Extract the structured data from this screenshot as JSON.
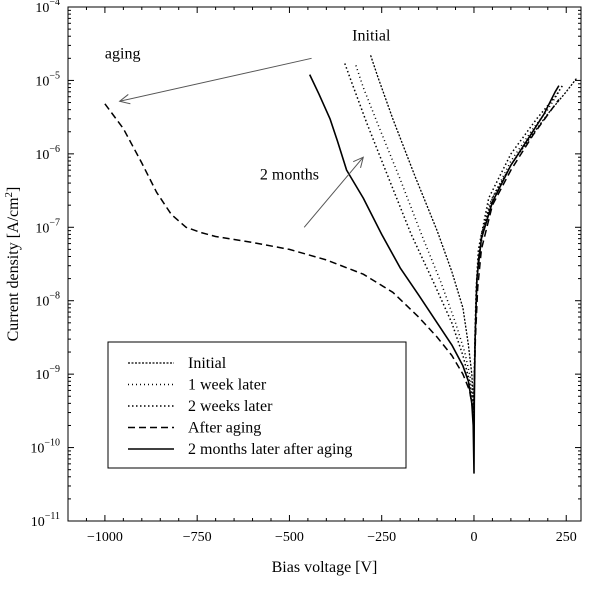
{
  "chart_data": {
    "type": "line",
    "title": "",
    "xlabel": "Bias voltage [V]",
    "ylabel_main": "Current density [A/cm",
    "ylabel_sup": "2",
    "ylabel_end": "]",
    "xlim": [
      -1100,
      290
    ],
    "ylim_log10": [
      -11,
      -4
    ],
    "y_scale": "log",
    "grid": false,
    "legend_position": "bottom-left",
    "x_ticks": [
      {
        "value": -1000,
        "label": "−1000"
      },
      {
        "value": -750,
        "label": "−750"
      },
      {
        "value": -500,
        "label": "−500"
      },
      {
        "value": -250,
        "label": "−250"
      },
      {
        "value": 0,
        "label": "0"
      },
      {
        "value": 250,
        "label": "250"
      }
    ],
    "y_ticks": [
      {
        "exp": -11,
        "base": "10",
        "sup": "−11"
      },
      {
        "exp": -10,
        "base": "10",
        "sup": "−10"
      },
      {
        "exp": -9,
        "base": "10",
        "sup": "−9"
      },
      {
        "exp": -8,
        "base": "10",
        "sup": "−8"
      },
      {
        "exp": -7,
        "base": "10",
        "sup": "−7"
      },
      {
        "exp": -6,
        "base": "10",
        "sup": "−6"
      },
      {
        "exp": -5,
        "base": "10",
        "sup": "−5"
      },
      {
        "exp": -4,
        "base": "10",
        "sup": "−4"
      }
    ],
    "series": [
      {
        "name": "Initial",
        "dash": "2,1.5",
        "width": 1.3,
        "points": [
          [
            -280,
            2.2e-05
          ],
          [
            -260,
            1.1e-05
          ],
          [
            -220,
            3e-06
          ],
          [
            -160,
            5e-07
          ],
          [
            -100,
            9e-08
          ],
          [
            -60,
            2.5e-08
          ],
          [
            -30,
            8e-09
          ],
          [
            -15,
            2.5e-09
          ],
          [
            -6,
            1e-09
          ],
          [
            -2,
            5e-10
          ],
          [
            0,
            3e-10
          ],
          [
            1,
            8e-10
          ],
          [
            3,
            3e-09
          ],
          [
            6,
            1e-08
          ],
          [
            10,
            3e-08
          ],
          [
            20,
            8e-08
          ],
          [
            50,
            2.5e-07
          ],
          [
            100,
            7e-07
          ],
          [
            150,
            1.6e-06
          ],
          [
            200,
            3.5e-06
          ],
          [
            250,
            7e-06
          ],
          [
            280,
            1.1e-05
          ]
        ]
      },
      {
        "name": "1 week later",
        "dash": "1,3",
        "width": 1.5,
        "points": [
          [
            -320,
            1.6e-05
          ],
          [
            -300,
            8e-06
          ],
          [
            -260,
            2.5e-06
          ],
          [
            -200,
            4.5e-07
          ],
          [
            -140,
            7.5e-08
          ],
          [
            -90,
            1.8e-08
          ],
          [
            -50,
            5e-09
          ],
          [
            -25,
            2e-09
          ],
          [
            -10,
            9e-10
          ],
          [
            -3,
            5e-10
          ],
          [
            0,
            2.5e-10
          ],
          [
            1,
            1e-09
          ],
          [
            3,
            3e-09
          ],
          [
            6,
            1.2e-08
          ],
          [
            12,
            4e-08
          ],
          [
            40,
            2e-07
          ],
          [
            100,
            8e-07
          ],
          [
            160,
            2.2e-06
          ],
          [
            200,
            4e-06
          ],
          [
            230,
            7e-06
          ]
        ]
      },
      {
        "name": "2 weeks later",
        "dash": "1.5,2.5",
        "width": 1.5,
        "points": [
          [
            -350,
            1.7e-05
          ],
          [
            -330,
            9e-06
          ],
          [
            -290,
            2.6e-06
          ],
          [
            -230,
            4.5e-07
          ],
          [
            -170,
            8e-08
          ],
          [
            -110,
            1.8e-08
          ],
          [
            -60,
            5e-09
          ],
          [
            -30,
            1.8e-09
          ],
          [
            -12,
            8e-10
          ],
          [
            -4,
            4.5e-10
          ],
          [
            0,
            2e-10
          ],
          [
            1,
            1e-09
          ],
          [
            3,
            4e-09
          ],
          [
            6,
            1.5e-08
          ],
          [
            12,
            5e-08
          ],
          [
            40,
            2.5e-07
          ],
          [
            100,
            1e-06
          ],
          [
            170,
            3e-06
          ],
          [
            220,
            6e-06
          ],
          [
            240,
            8.5e-06
          ]
        ]
      },
      {
        "name": "After aging",
        "dash": "7,4",
        "width": 1.5,
        "points": [
          [
            -1000,
            4.8e-06
          ],
          [
            -950,
            2.2e-06
          ],
          [
            -900,
            7.5e-07
          ],
          [
            -860,
            3e-07
          ],
          [
            -820,
            1.5e-07
          ],
          [
            -780,
            1e-07
          ],
          [
            -740,
            8.5e-08
          ],
          [
            -700,
            7.5e-08
          ],
          [
            -600,
            6.2e-08
          ],
          [
            -500,
            5e-08
          ],
          [
            -400,
            3.6e-08
          ],
          [
            -300,
            2.3e-08
          ],
          [
            -220,
            1.3e-08
          ],
          [
            -150,
            6e-09
          ],
          [
            -100,
            3.2e-09
          ],
          [
            -60,
            1.8e-09
          ],
          [
            -30,
            1e-09
          ],
          [
            -12,
            6e-10
          ],
          [
            -4,
            3.5e-10
          ],
          [
            0,
            2.5e-10
          ],
          [
            1,
            7e-10
          ],
          [
            4,
            3e-09
          ],
          [
            10,
            1.5e-08
          ],
          [
            20,
            5e-08
          ],
          [
            50,
            2e-07
          ],
          [
            100,
            6e-07
          ],
          [
            160,
            1.8e-06
          ],
          [
            210,
            4e-06
          ],
          [
            230,
            5.5e-06
          ]
        ]
      },
      {
        "name": "2 months later after aging",
        "dash": "",
        "width": 1.6,
        "points": [
          [
            -445,
            1.2e-05
          ],
          [
            -420,
            6.5e-06
          ],
          [
            -390,
            3e-06
          ],
          [
            -370,
            1.5e-06
          ],
          [
            -345,
            6e-07
          ],
          [
            -300,
            2.5e-07
          ],
          [
            -250,
            8e-08
          ],
          [
            -200,
            2.8e-08
          ],
          [
            -150,
            1.2e-08
          ],
          [
            -100,
            5e-09
          ],
          [
            -60,
            2.5e-09
          ],
          [
            -30,
            1.3e-09
          ],
          [
            -15,
            8e-10
          ],
          [
            -6,
            4e-10
          ],
          [
            -2,
            2e-10
          ],
          [
            0,
            4.5e-11
          ],
          [
            1,
            4e-10
          ],
          [
            3,
            3e-09
          ],
          [
            8,
            2e-08
          ],
          [
            20,
            7e-08
          ],
          [
            50,
            2.2e-07
          ],
          [
            100,
            7e-07
          ],
          [
            150,
            1.7e-06
          ],
          [
            190,
            3.5e-06
          ],
          [
            220,
            7e-06
          ],
          [
            230,
            8.5e-06
          ]
        ]
      }
    ],
    "annotations": {
      "initial": {
        "text": "Initial",
        "x": -330,
        "y": 3.5e-05
      },
      "aging": {
        "text": "aging",
        "x": -1000,
        "y": 2e-05
      },
      "two_months": {
        "text": "2 months",
        "x": -580,
        "y": 4.5e-07
      }
    },
    "arrows": [
      {
        "from": [
          -440,
          2e-05
        ],
        "to": [
          -960,
          5.2e-06
        ]
      },
      {
        "from": [
          -460,
          1e-07
        ],
        "to": [
          -300,
          9e-07
        ]
      }
    ]
  }
}
